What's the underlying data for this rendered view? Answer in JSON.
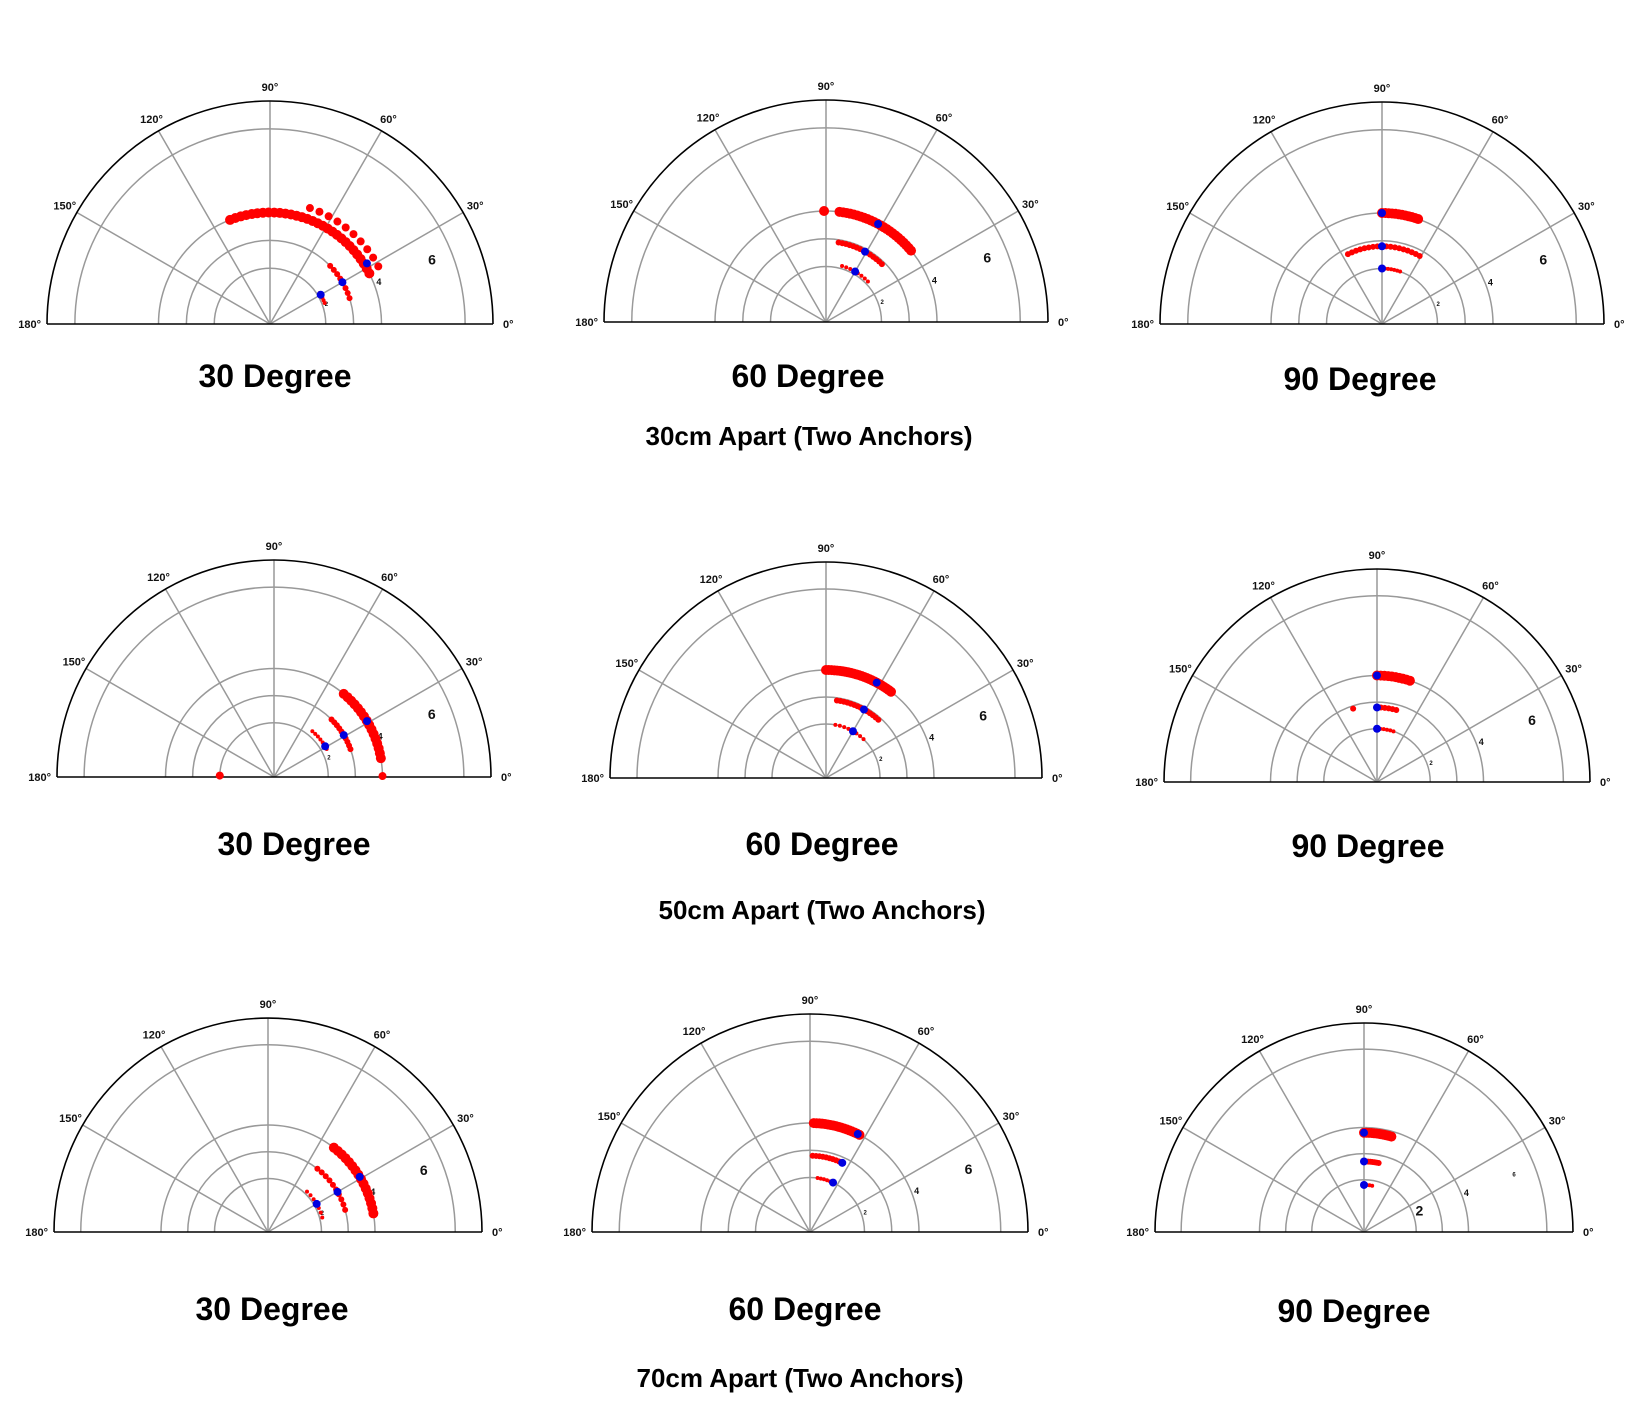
{
  "chart_data": [
    {
      "row": 0,
      "col": 0,
      "type": "scatter",
      "projection": "polar-half",
      "title": "30 Degree",
      "theta_ticks": [
        "0°",
        "30°",
        "60°",
        "90°",
        "120°",
        "150°",
        "180°"
      ],
      "r_tick_labels": [
        {
          "r": 2,
          "label": "2"
        },
        {
          "r": 4,
          "label": "4"
        },
        {
          "r": 6,
          "label": "6"
        }
      ],
      "rings": [
        2,
        3,
        4,
        7
      ],
      "rmax": 8,
      "series": [
        {
          "color": "red",
          "theta_range": [
            21,
            32
          ],
          "r": 2.1,
          "n": 5,
          "size": 2
        },
        {
          "color": "red",
          "theta_range": [
            18,
            44
          ],
          "r": 3.0,
          "n": 8,
          "size": 3
        },
        {
          "color": "red",
          "theta_range": [
            28,
            71
          ],
          "r": 4.4,
          "n": 10,
          "size": 4
        },
        {
          "color": "red",
          "theta_range": [
            27,
            111
          ],
          "r": 4.0,
          "n": 30,
          "size": 5
        },
        {
          "color": "blue",
          "points": [
            [
              30,
              2.1
            ],
            [
              30,
              3.0
            ],
            [
              32,
              4.1
            ]
          ],
          "size": 4
        }
      ]
    },
    {
      "row": 0,
      "col": 1,
      "type": "scatter",
      "projection": "polar-half",
      "title": "60 Degree",
      "theta_ticks": [
        "0°",
        "30°",
        "60°",
        "90°",
        "120°",
        "150°",
        "180°"
      ],
      "r_tick_labels": [
        {
          "r": 2,
          "label": "2"
        },
        {
          "r": 4,
          "label": "4"
        },
        {
          "r": 6,
          "label": "6"
        }
      ],
      "rings": [
        2,
        3,
        4,
        7
      ],
      "rmax": 8,
      "series": [
        {
          "color": "red",
          "theta_range": [
            44,
            74
          ],
          "r": 2.1,
          "n": 8,
          "size": 2
        },
        {
          "color": "red",
          "theta_range": [
            46,
            81
          ],
          "r": 2.9,
          "n": 14,
          "size": 3
        },
        {
          "color": "red",
          "theta_range": [
            40,
            83
          ],
          "r": 4.0,
          "n": 24,
          "size": 5
        },
        {
          "color": "red",
          "points": [
            [
              91,
              4.0
            ]
          ],
          "size": 5
        },
        {
          "color": "blue",
          "points": [
            [
              60,
              2.1
            ],
            [
              61,
              2.9
            ],
            [
              62,
              4.0
            ]
          ],
          "size": 4
        }
      ]
    },
    {
      "row": 0,
      "col": 2,
      "type": "scatter",
      "projection": "polar-half",
      "title": "90 Degree",
      "theta_ticks": [
        "0°",
        "30°",
        "60°",
        "90°",
        "120°",
        "150°",
        "180°"
      ],
      "r_tick_labels": [
        {
          "r": 2,
          "label": "2"
        },
        {
          "r": 4,
          "label": "4"
        },
        {
          "r": 6,
          "label": "6"
        }
      ],
      "rings": [
        2,
        3,
        4,
        7
      ],
      "rmax": 8,
      "series": [
        {
          "color": "red",
          "theta_range": [
            71,
            90
          ],
          "r": 2.0,
          "n": 7,
          "size": 2
        },
        {
          "color": "red",
          "theta_range": [
            61,
            116
          ],
          "r": 2.8,
          "n": 18,
          "size": 3
        },
        {
          "color": "red",
          "theta_range": [
            71,
            90
          ],
          "r": 4.0,
          "n": 12,
          "size": 5
        },
        {
          "color": "blue",
          "points": [
            [
              90,
              2.0
            ],
            [
              90,
              2.8
            ],
            [
              90,
              4.0
            ]
          ],
          "size": 4
        }
      ]
    },
    {
      "row": 1,
      "col": 0,
      "type": "scatter",
      "projection": "polar-half",
      "title": "30 Degree",
      "theta_ticks": [
        "0°",
        "30°",
        "60°",
        "90°",
        "120°",
        "150°",
        "180°"
      ],
      "r_tick_labels": [
        {
          "r": 2,
          "label": "2"
        },
        {
          "r": 4,
          "label": "4"
        },
        {
          "r": 6,
          "label": "6"
        }
      ],
      "rings": [
        2,
        3,
        4,
        7
      ],
      "rmax": 8,
      "series": [
        {
          "color": "red",
          "theta_range": [
            28,
            50
          ],
          "r": 2.2,
          "n": 7,
          "size": 2
        },
        {
          "color": "red",
          "theta_range": [
            20,
            45
          ],
          "r": 3.0,
          "n": 10,
          "size": 3
        },
        {
          "color": "red",
          "theta_range": [
            10,
            50
          ],
          "r": 4.0,
          "n": 16,
          "size": 5
        },
        {
          "color": "red",
          "points": [
            [
              0.5,
              4.0
            ],
            [
              178.5,
              2.0
            ]
          ],
          "size": 4
        },
        {
          "color": "blue",
          "points": [
            [
              31,
              2.2
            ],
            [
              31,
              3.0
            ],
            [
              31,
              4.0
            ]
          ],
          "size": 4
        }
      ]
    },
    {
      "row": 1,
      "col": 1,
      "type": "scatter",
      "projection": "polar-half",
      "title": "60 Degree",
      "theta_ticks": [
        "0°",
        "30°",
        "60°",
        "90°",
        "120°",
        "150°",
        "180°"
      ],
      "r_tick_labels": [
        {
          "r": 2,
          "label": "2"
        },
        {
          "r": 4,
          "label": "4"
        },
        {
          "r": 6,
          "label": "6"
        }
      ],
      "rings": [
        2,
        3,
        4,
        7
      ],
      "rmax": 8,
      "series": [
        {
          "color": "red",
          "theta_range": [
            46,
            80
          ],
          "r": 2.0,
          "n": 8,
          "size": 2
        },
        {
          "color": "red",
          "theta_range": [
            48,
            82
          ],
          "r": 2.9,
          "n": 14,
          "size": 3
        },
        {
          "color": "red",
          "theta_range": [
            53,
            90
          ],
          "r": 4.0,
          "n": 26,
          "size": 5
        },
        {
          "color": "blue",
          "points": [
            [
              60,
              2.0
            ],
            [
              61,
              2.9
            ],
            [
              62,
              4.0
            ]
          ],
          "size": 4
        }
      ]
    },
    {
      "row": 1,
      "col": 2,
      "type": "scatter",
      "projection": "polar-half",
      "title": "90 Degree",
      "theta_ticks": [
        "0°",
        "30°",
        "60°",
        "90°",
        "120°",
        "150°",
        "180°"
      ],
      "r_tick_labels": [
        {
          "r": 2,
          "label": "2"
        },
        {
          "r": 4,
          "label": "4"
        },
        {
          "r": 6,
          "label": "6"
        }
      ],
      "rings": [
        2,
        3,
        4,
        7
      ],
      "rmax": 8,
      "series": [
        {
          "color": "red",
          "theta_range": [
            72,
            90
          ],
          "r": 2.0,
          "n": 6,
          "size": 2
        },
        {
          "color": "red",
          "theta_range": [
            75,
            90
          ],
          "r": 2.8,
          "n": 6,
          "size": 3
        },
        {
          "color": "red",
          "points": [
            [
              108,
              2.9
            ]
          ],
          "size": 3
        },
        {
          "color": "red",
          "theta_range": [
            72,
            90
          ],
          "r": 4.0,
          "n": 10,
          "size": 5
        },
        {
          "color": "blue",
          "points": [
            [
              90,
              2.0
            ],
            [
              90,
              2.8
            ],
            [
              90,
              4.0
            ]
          ],
          "size": 4
        }
      ]
    },
    {
      "row": 2,
      "col": 0,
      "type": "scatter",
      "projection": "polar-half",
      "title": "30 Degree",
      "theta_ticks": [
        "0°",
        "30°",
        "60°",
        "90°",
        "120°",
        "150°",
        "180°"
      ],
      "r_tick_labels": [
        {
          "r": 2,
          "label": "2"
        },
        {
          "r": 4,
          "label": "4"
        },
        {
          "r": 6,
          "label": "6"
        }
      ],
      "rings": [
        2,
        3,
        4,
        7
      ],
      "rmax": 8,
      "series": [
        {
          "color": "red",
          "theta_range": [
            15,
            46
          ],
          "r": 2.1,
          "n": 7,
          "size": 2
        },
        {
          "color": "red",
          "theta_range": [
            16,
            52
          ],
          "r": 3.0,
          "n": 10,
          "size": 3
        },
        {
          "color": "red",
          "theta_range": [
            10,
            52
          ],
          "r": 4.0,
          "n": 16,
          "size": 5
        },
        {
          "color": "blue",
          "points": [
            [
              30,
              2.1
            ],
            [
              30,
              3.0
            ],
            [
              31,
              4.0
            ]
          ],
          "size": 4
        }
      ]
    },
    {
      "row": 2,
      "col": 1,
      "type": "scatter",
      "projection": "polar-half",
      "title": "60 Degree",
      "theta_ticks": [
        "0°",
        "30°",
        "60°",
        "90°",
        "120°",
        "150°",
        "180°"
      ],
      "r_tick_labels": [
        {
          "r": 2,
          "label": "2"
        },
        {
          "r": 4,
          "label": "4"
        },
        {
          "r": 6,
          "label": "6"
        }
      ],
      "rings": [
        2,
        3,
        4,
        7
      ],
      "rmax": 8,
      "series": [
        {
          "color": "red",
          "theta_range": [
            65,
            82
          ],
          "r": 2.0,
          "n": 6,
          "size": 2
        },
        {
          "color": "red",
          "theta_range": [
            65,
            88
          ],
          "r": 2.8,
          "n": 10,
          "size": 3
        },
        {
          "color": "red",
          "theta_range": [
            63,
            88
          ],
          "r": 4.0,
          "n": 18,
          "size": 5
        },
        {
          "color": "blue",
          "points": [
            [
              65,
              2.0
            ],
            [
              65,
              2.8
            ],
            [
              64,
              4.0
            ]
          ],
          "size": 4
        }
      ]
    },
    {
      "row": 2,
      "col": 2,
      "type": "scatter",
      "projection": "polar-half",
      "title": "90 Degree",
      "theta_ticks": [
        "0°",
        "30°",
        "60°",
        "90°",
        "120°",
        "150°",
        "180°"
      ],
      "r_tick_labels": [
        {
          "r": 6,
          "label": "6"
        },
        {
          "r": 4,
          "label": "4"
        },
        {
          "r": 2,
          "label": "2"
        }
      ],
      "rings": [
        2,
        3,
        4,
        7
      ],
      "rmax": 8,
      "series": [
        {
          "color": "red",
          "theta_range": [
            80,
            90
          ],
          "r": 1.8,
          "n": 4,
          "size": 2
        },
        {
          "color": "red",
          "theta_range": [
            78,
            90
          ],
          "r": 2.7,
          "n": 8,
          "size": 3
        },
        {
          "color": "red",
          "theta_range": [
            74,
            90
          ],
          "r": 3.8,
          "n": 12,
          "size": 5
        },
        {
          "color": "blue",
          "points": [
            [
              90,
              1.8
            ],
            [
              90,
              2.7
            ],
            [
              90,
              3.8
            ]
          ],
          "size": 4
        }
      ]
    }
  ],
  "row_captions": [
    "30cm Apart (Two Anchors)",
    "50cm Apart (Two Anchors)",
    "70cm Apart (Two Anchors)"
  ],
  "colors": {
    "red_points": "#ff0000",
    "blue_points": "#0000e0",
    "grid": "#999999",
    "frame": "#000000"
  }
}
